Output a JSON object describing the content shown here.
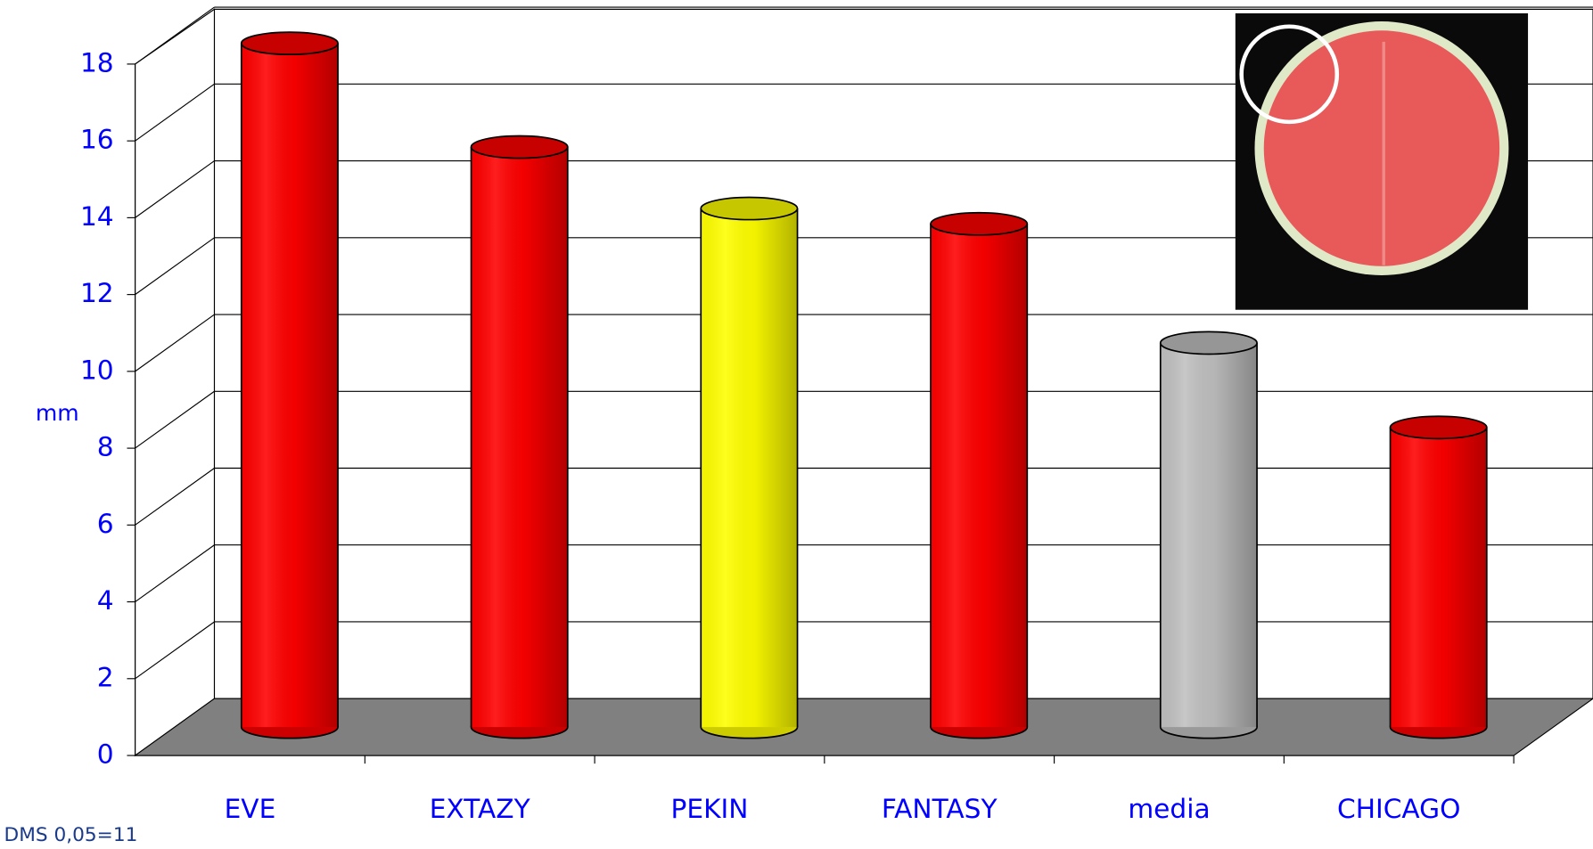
{
  "chart_data": {
    "type": "bar",
    "y_label": "mm",
    "note": "DMS 0,05=11",
    "categories": [
      "EVE",
      "EXTAZY",
      "PEKIN",
      "FANTASY",
      "media",
      "CHICAGO"
    ],
    "values": [
      17.8,
      15.1,
      13.5,
      13.1,
      10.0,
      7.8
    ],
    "colors": [
      "#ff0000",
      "#ff0000",
      "#ffff00",
      "#ff0000",
      "#c0c0c0",
      "#ff0000"
    ],
    "ylim": [
      0,
      18
    ],
    "yticks": [
      0,
      2,
      4,
      6,
      8,
      10,
      12,
      14,
      16,
      18
    ],
    "grid": true
  }
}
